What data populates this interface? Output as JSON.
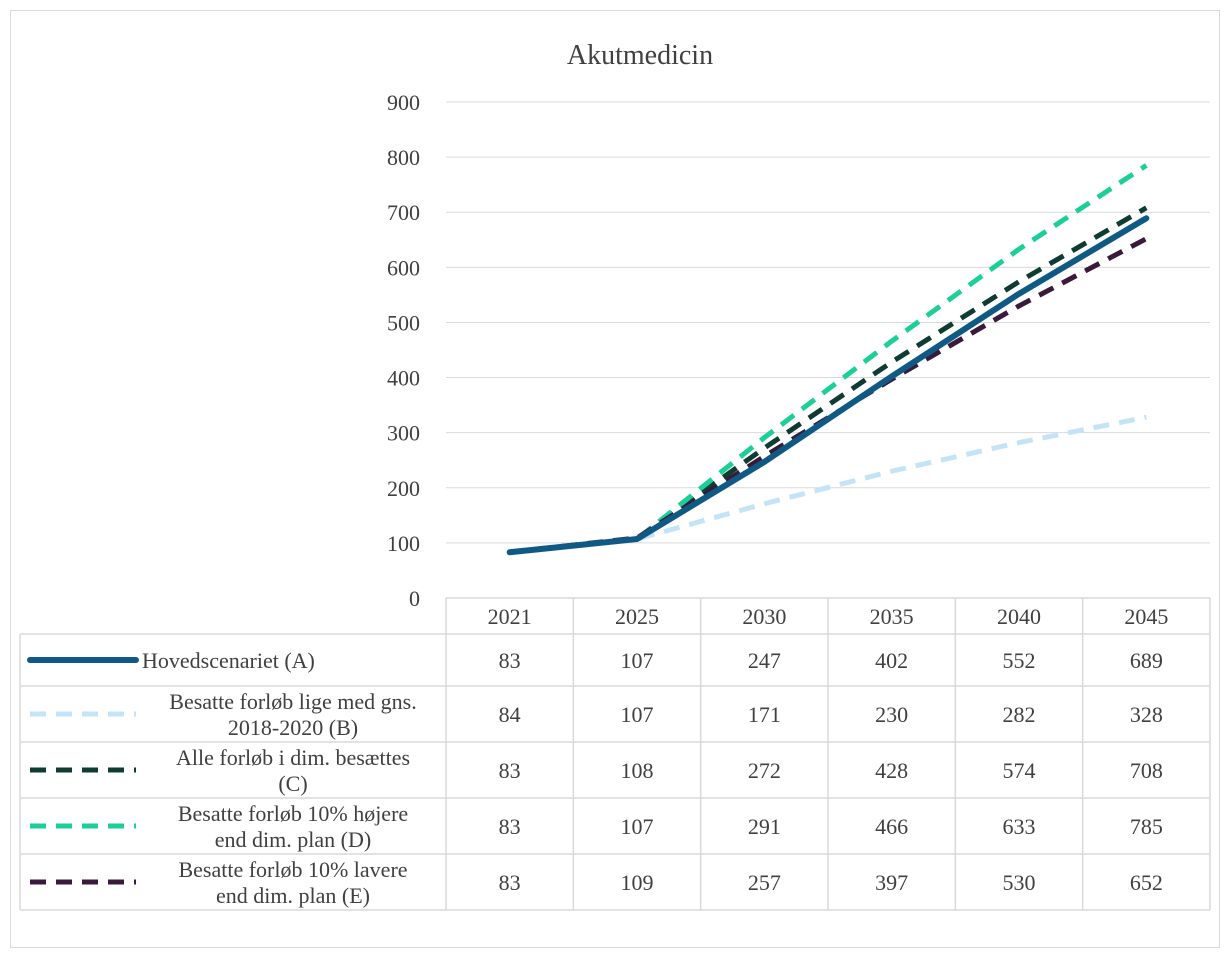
{
  "chart_data": {
    "type": "line",
    "title": "Akutmedicin",
    "categories": [
      "2021",
      "2025",
      "2030",
      "2035",
      "2040",
      "2045"
    ],
    "ylim": [
      0,
      900
    ],
    "yticks": [
      "0",
      "100",
      "200",
      "300",
      "400",
      "500",
      "600",
      "700",
      "800",
      "900"
    ],
    "grid": true,
    "legend_placement": "data-table",
    "series": [
      {
        "name_lines": [
          "Hovedscenariet (A)"
        ],
        "values": [
          83,
          107,
          247,
          402,
          552,
          689
        ],
        "color": "#0f5a85",
        "style": "solid"
      },
      {
        "name_lines": [
          "Besatte forløb lige med gns.",
          "2018-2020 (B)"
        ],
        "values": [
          84,
          107,
          171,
          230,
          282,
          328
        ],
        "color": "#c5e3f7",
        "style": "dashed"
      },
      {
        "name_lines": [
          "Alle forløb i dim. besættes",
          "(C)"
        ],
        "values": [
          83,
          108,
          272,
          428,
          574,
          708
        ],
        "color": "#0e3b32",
        "style": "dashed"
      },
      {
        "name_lines": [
          "Besatte forløb 10% højere",
          "end dim. plan (D)"
        ],
        "values": [
          83,
          107,
          291,
          466,
          633,
          785
        ],
        "color": "#1ccf98",
        "style": "dashed"
      },
      {
        "name_lines": [
          "Besatte forløb 10% lavere",
          "end dim. plan (E)"
        ],
        "values": [
          83,
          109,
          257,
          397,
          530,
          652
        ],
        "color": "#3a1a3a",
        "style": "dashed"
      }
    ]
  }
}
